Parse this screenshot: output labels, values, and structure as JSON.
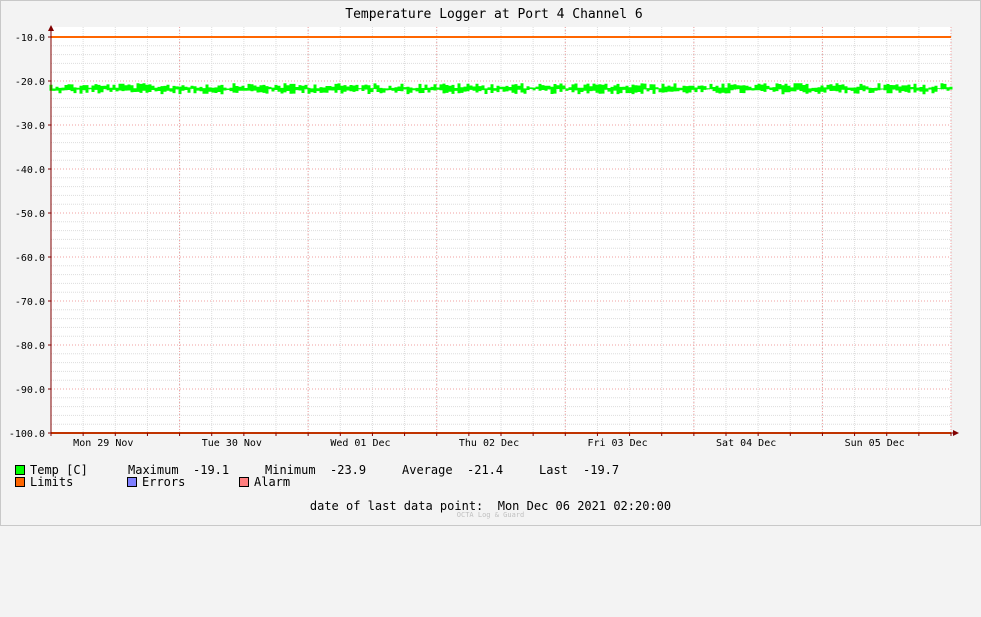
{
  "chart_data": {
    "type": "line",
    "title": "Temperature Logger at Port 4 Channel 6",
    "xlabel": "",
    "ylabel": "",
    "ylim": [
      -100,
      -10
    ],
    "yticks": [
      "-10.0",
      "-20.0",
      "-30.0",
      "-40.0",
      "-50.0",
      "-60.0",
      "-70.0",
      "-80.0",
      "-90.0",
      "-100.0"
    ],
    "ytick_values": [
      -10,
      -20,
      -30,
      -40,
      -50,
      -60,
      -70,
      -80,
      -90,
      -100
    ],
    "x_categories": [
      "Mon 29 Nov",
      "Tue 30 Nov",
      "Wed 01 Dec",
      "Thu 02 Dec",
      "Fri 03 Dec",
      "Sat 04 Dec",
      "Sun 05 Dec"
    ],
    "grid": true,
    "series": [
      {
        "name": "Temp [C]",
        "color": "#00ff00",
        "band_min": -23.9,
        "band_max": -19.1,
        "typical_low": -23.0,
        "typical_high": -20.5
      },
      {
        "name": "Limits",
        "color": "#ff6600",
        "values": [
          -10,
          -100
        ]
      }
    ]
  },
  "legend": {
    "temp": {
      "label": "Temp [C]",
      "max_label": "Maximum",
      "max_value": "-19.1",
      "min_label": "Minimum",
      "min_value": "-23.9",
      "avg_label": "Average",
      "avg_value": "-21.4",
      "last_label": "Last",
      "last_value": "-19.7",
      "color": "#00ff00"
    },
    "limits": {
      "label": "Limits",
      "color": "#ff6600"
    },
    "errors": {
      "label": "Errors",
      "color": "#7f7fff"
    },
    "alarm": {
      "label": "Alarm",
      "color": "#ff7f7f"
    }
  },
  "footer": {
    "label": "date of last data point:",
    "value": "Mon Dec 06 2021 02:20:00",
    "watermark": "OCTA Log & Guard"
  }
}
